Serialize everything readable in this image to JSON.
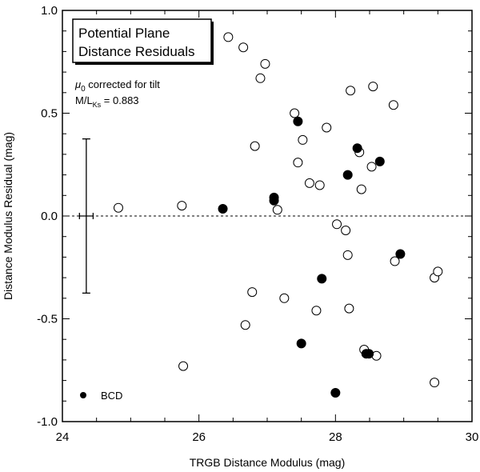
{
  "chart_data": {
    "type": "scatter",
    "title": "",
    "xlabel": "TRGB Distance Modulus (mag)",
    "ylabel": "Distance Modulus Residual (mag)",
    "xlim": [
      24,
      30
    ],
    "ylim": [
      -1.0,
      1.0
    ],
    "x_ticks": [
      24,
      26,
      28,
      30
    ],
    "x_tick_labels": [
      "24",
      "26",
      "28",
      "30"
    ],
    "y_ticks": [
      -1.0,
      -0.5,
      0.0,
      0.5,
      1.0
    ],
    "y_tick_labels": [
      "-1.0",
      "-0.5",
      "0.0",
      "0.5",
      "1.0"
    ],
    "grid": false,
    "reference_line": {
      "y": 0.0,
      "style": "dashed"
    },
    "title_box": [
      "Potential Plane",
      "Distance Residuals"
    ],
    "annotations": {
      "mu_symbol": "μ",
      "mu_subscript": "0",
      "mu_text": " corrected for tilt",
      "ml_prefix": "M/L",
      "ml_subscript": "Ks",
      "ml_value": " = 0.883"
    },
    "error_bar": {
      "x": 24.35,
      "y": 0.0,
      "y_err": 0.375,
      "x_err": 0.1
    },
    "legend": {
      "label": "BCD",
      "position": "bottom-left"
    },
    "series": [
      {
        "style": "open",
        "points": [
          [
            24.82,
            0.04
          ],
          [
            25.75,
            0.05
          ],
          [
            25.77,
            -0.73
          ],
          [
            26.43,
            0.87
          ],
          [
            26.65,
            0.82
          ],
          [
            26.68,
            -0.53
          ],
          [
            26.78,
            -0.37
          ],
          [
            26.82,
            0.34
          ],
          [
            26.9,
            0.67
          ],
          [
            26.97,
            0.74
          ],
          [
            27.15,
            0.03
          ],
          [
            27.25,
            -0.4
          ],
          [
            27.4,
            0.5
          ],
          [
            27.45,
            0.26
          ],
          [
            27.52,
            0.37
          ],
          [
            27.62,
            0.16
          ],
          [
            27.72,
            -0.46
          ],
          [
            27.77,
            0.15
          ],
          [
            27.87,
            0.43
          ],
          [
            28.02,
            -0.04
          ],
          [
            28.15,
            -0.07
          ],
          [
            28.18,
            -0.19
          ],
          [
            28.2,
            -0.45
          ],
          [
            28.22,
            0.61
          ],
          [
            28.35,
            0.31
          ],
          [
            28.38,
            0.13
          ],
          [
            28.42,
            -0.65
          ],
          [
            28.53,
            0.24
          ],
          [
            28.55,
            0.63
          ],
          [
            28.6,
            -0.68
          ],
          [
            28.85,
            0.54
          ],
          [
            28.87,
            -0.22
          ],
          [
            29.45,
            -0.81
          ],
          [
            29.45,
            -0.3
          ],
          [
            29.5,
            -0.27
          ]
        ]
      },
      {
        "name": "BCD",
        "style": "filled",
        "points": [
          [
            26.35,
            0.035
          ],
          [
            27.1,
            0.09
          ],
          [
            27.1,
            0.075
          ],
          [
            27.45,
            0.46
          ],
          [
            27.5,
            -0.62
          ],
          [
            27.8,
            -0.305
          ],
          [
            28.0,
            -0.86
          ],
          [
            28.18,
            0.2
          ],
          [
            28.32,
            0.33
          ],
          [
            28.45,
            -0.67
          ],
          [
            28.49,
            -0.67
          ],
          [
            28.65,
            0.265
          ],
          [
            28.95,
            -0.185
          ]
        ]
      }
    ]
  }
}
